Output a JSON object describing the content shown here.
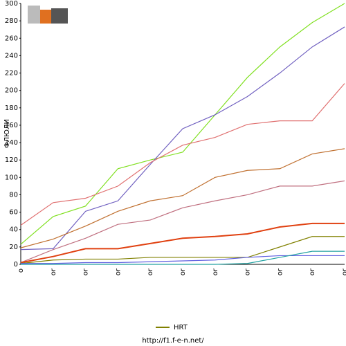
{
  "chart_data": {
    "type": "line",
    "y_label": "ФЛЮЛИ",
    "categories": [
      "o",
      "or",
      "or",
      "or",
      "or",
      "or",
      "or",
      "or",
      "or",
      "or",
      "or"
    ],
    "ylim": [
      0,
      300
    ],
    "yticks": [
      0,
      20,
      40,
      60,
      80,
      100,
      120,
      140,
      160,
      180,
      200,
      220,
      240,
      260,
      280,
      300
    ],
    "grid": false,
    "series": [
      {
        "color": "#80e020",
        "values": [
          23,
          55,
          67,
          110,
          120,
          129,
          172,
          215,
          250,
          278,
          300
        ]
      },
      {
        "color": "#7060c0",
        "values": [
          17,
          18,
          61,
          73,
          115,
          156,
          172,
          193,
          220,
          250,
          273
        ]
      },
      {
        "color": "#e07070",
        "values": [
          45,
          71,
          76,
          90,
          117,
          137,
          146,
          161,
          165,
          165,
          208
        ]
      },
      {
        "color": "#c07030",
        "values": [
          19,
          29,
          44,
          61,
          73,
          79,
          100,
          108,
          110,
          127,
          133
        ]
      },
      {
        "color": "#c07080",
        "values": [
          2,
          17,
          30,
          46,
          51,
          65,
          73,
          80,
          90,
          90,
          96
        ]
      },
      {
        "color": "#e04010",
        "values": [
          2,
          9,
          18,
          18,
          24,
          30,
          32,
          35,
          43,
          47,
          47
        ]
      },
      {
        "name": "HRT",
        "color": "#808000",
        "values": [
          1,
          5,
          6,
          6,
          8,
          8,
          8,
          8,
          20,
          32,
          32
        ]
      },
      {
        "color": "#6060e0",
        "values": [
          1,
          1,
          2,
          2,
          3,
          4,
          5,
          8,
          10,
          10,
          10
        ]
      },
      {
        "color": "#20a0a0",
        "values": [
          0,
          0,
          0,
          0,
          0,
          0,
          0,
          1,
          8,
          15,
          15
        ]
      }
    ],
    "footer": "http://f1.f-e-n.net/"
  }
}
